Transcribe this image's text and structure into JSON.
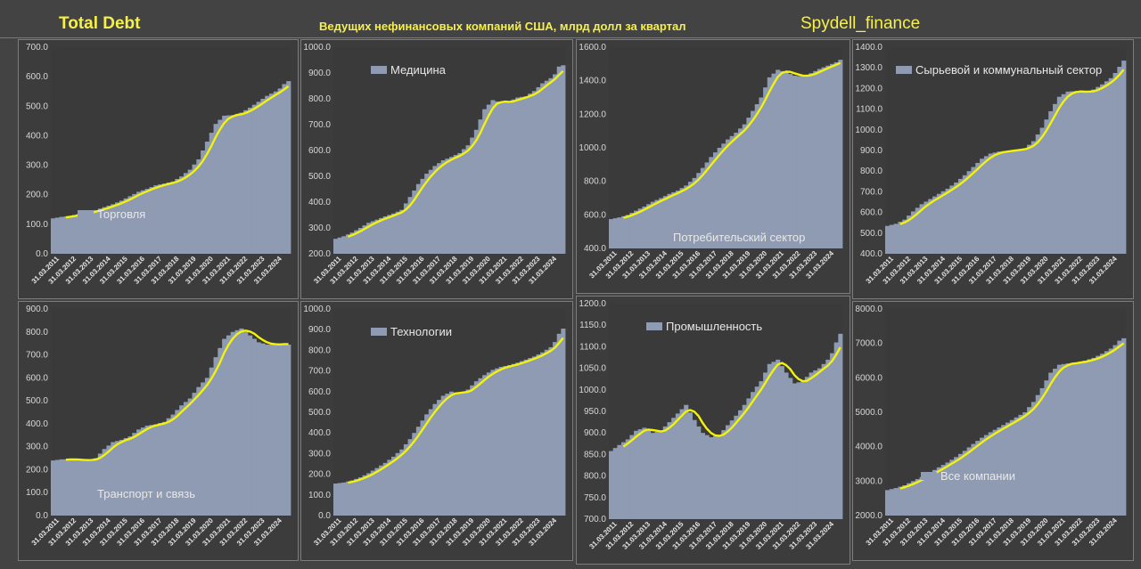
{
  "header": {
    "title": "Total Debt",
    "subtitle": "Ведущих нефинансовых компаний США, млрд долл за квартал",
    "source": "Spydell_finance"
  },
  "colors": {
    "bar": "#8e9bb3",
    "trend": "#f2f20a",
    "accent": "#f5f04a",
    "panel_bg": "#3c3c3c"
  },
  "x_ticks": [
    "31.03.2011",
    "31.03.2012",
    "31.03.2013",
    "31.03.2014",
    "31.03.2015",
    "31.03.2016",
    "31.03.2017",
    "31.03.2018",
    "31.03.2019",
    "31.03.2020",
    "31.03.2021",
    "31.03.2022",
    "31.03.2023",
    "31.03.2024"
  ],
  "chart_data": [
    {
      "type": "bar",
      "legend": "Торговля",
      "legend_position": "bottom-left",
      "ylim": [
        0,
        700
      ],
      "yticks": [
        "0.0",
        "100.0",
        "200.0",
        "300.0",
        "400.0",
        "500.0",
        "600.0",
        "700.0"
      ],
      "anchors": [
        [
          2011.0,
          120
        ],
        [
          2011.5,
          125
        ],
        [
          2012.0,
          128
        ],
        [
          2012.5,
          135
        ],
        [
          2013.0,
          140
        ],
        [
          2013.5,
          148
        ],
        [
          2014.0,
          158
        ],
        [
          2014.5,
          168
        ],
        [
          2015.0,
          180
        ],
        [
          2015.5,
          195
        ],
        [
          2016.0,
          210
        ],
        [
          2016.5,
          220
        ],
        [
          2017.0,
          232
        ],
        [
          2017.5,
          238
        ],
        [
          2018.0,
          245
        ],
        [
          2018.5,
          262
        ],
        [
          2019.0,
          285
        ],
        [
          2019.5,
          320
        ],
        [
          2020.0,
          380
        ],
        [
          2020.5,
          440
        ],
        [
          2021.0,
          468
        ],
        [
          2021.5,
          470
        ],
        [
          2022.0,
          478
        ],
        [
          2022.5,
          495
        ],
        [
          2023.0,
          515
        ],
        [
          2023.5,
          535
        ],
        [
          2024.0,
          550
        ],
        [
          2024.25,
          560
        ],
        [
          2024.5,
          575
        ],
        [
          2024.75,
          585
        ]
      ]
    },
    {
      "type": "bar",
      "legend": "Медицина",
      "legend_position": "top-left",
      "ylim": [
        200,
        1000
      ],
      "yticks": [
        "200.0",
        "300.0",
        "400.0",
        "500.0",
        "600.0",
        "700.0",
        "800.0",
        "900.0",
        "1000.0"
      ],
      "anchors": [
        [
          2011.0,
          258
        ],
        [
          2011.5,
          268
        ],
        [
          2012.0,
          282
        ],
        [
          2012.5,
          300
        ],
        [
          2013.0,
          320
        ],
        [
          2013.5,
          332
        ],
        [
          2014.0,
          345
        ],
        [
          2014.5,
          356
        ],
        [
          2015.0,
          370
        ],
        [
          2015.5,
          420
        ],
        [
          2016.0,
          470
        ],
        [
          2016.5,
          510
        ],
        [
          2017.0,
          540
        ],
        [
          2017.5,
          562
        ],
        [
          2018.0,
          575
        ],
        [
          2018.5,
          590
        ],
        [
          2019.0,
          620
        ],
        [
          2019.5,
          680
        ],
        [
          2020.0,
          760
        ],
        [
          2020.5,
          795
        ],
        [
          2021.0,
          785
        ],
        [
          2021.5,
          790
        ],
        [
          2022.0,
          805
        ],
        [
          2022.5,
          810
        ],
        [
          2023.0,
          830
        ],
        [
          2023.5,
          860
        ],
        [
          2024.0,
          880
        ],
        [
          2024.25,
          895
        ],
        [
          2024.5,
          925
        ],
        [
          2024.75,
          930
        ]
      ]
    },
    {
      "type": "bar",
      "legend": "Потребительский сектор",
      "legend_position": "bottom-center",
      "ylim": [
        400,
        1600
      ],
      "yticks": [
        "400.0",
        "600.0",
        "800.0",
        "1000.0",
        "1200.0",
        "1400.0",
        "1600.0"
      ],
      "anchors": [
        [
          2011.0,
          575
        ],
        [
          2011.5,
          585
        ],
        [
          2012.0,
          600
        ],
        [
          2012.5,
          625
        ],
        [
          2013.0,
          650
        ],
        [
          2013.5,
          678
        ],
        [
          2014.0,
          700
        ],
        [
          2014.5,
          725
        ],
        [
          2015.0,
          745
        ],
        [
          2015.5,
          775
        ],
        [
          2016.0,
          820
        ],
        [
          2016.5,
          880
        ],
        [
          2017.0,
          945
        ],
        [
          2017.5,
          1000
        ],
        [
          2018.0,
          1050
        ],
        [
          2018.5,
          1090
        ],
        [
          2019.0,
          1140
        ],
        [
          2019.5,
          1220
        ],
        [
          2020.0,
          1300
        ],
        [
          2020.5,
          1420
        ],
        [
          2021.0,
          1465
        ],
        [
          2021.5,
          1450
        ],
        [
          2022.0,
          1430
        ],
        [
          2022.5,
          1425
        ],
        [
          2023.0,
          1445
        ],
        [
          2023.5,
          1470
        ],
        [
          2024.0,
          1490
        ],
        [
          2024.25,
          1500
        ],
        [
          2024.5,
          1510
        ],
        [
          2024.75,
          1525
        ]
      ]
    },
    {
      "type": "bar",
      "legend": "Сырьевой и коммунальный сектор",
      "legend_position": "top-left",
      "ylim": [
        400,
        1400
      ],
      "yticks": [
        "400.0",
        "500.0",
        "600.0",
        "700.0",
        "800.0",
        "900.0",
        "1000.0",
        "1100.0",
        "1200.0",
        "1300.0",
        "1400.0"
      ],
      "anchors": [
        [
          2011.0,
          535
        ],
        [
          2011.5,
          545
        ],
        [
          2012.0,
          565
        ],
        [
          2012.5,
          605
        ],
        [
          2013.0,
          640
        ],
        [
          2013.5,
          665
        ],
        [
          2014.0,
          690
        ],
        [
          2014.5,
          715
        ],
        [
          2015.0,
          745
        ],
        [
          2015.5,
          780
        ],
        [
          2016.0,
          820
        ],
        [
          2016.5,
          860
        ],
        [
          2017.0,
          885
        ],
        [
          2017.5,
          895
        ],
        [
          2018.0,
          898
        ],
        [
          2018.5,
          905
        ],
        [
          2019.0,
          910
        ],
        [
          2019.5,
          945
        ],
        [
          2020.0,
          1010
        ],
        [
          2020.5,
          1090
        ],
        [
          2021.0,
          1160
        ],
        [
          2021.5,
          1185
        ],
        [
          2022.0,
          1188
        ],
        [
          2022.5,
          1180
        ],
        [
          2023.0,
          1195
        ],
        [
          2023.5,
          1220
        ],
        [
          2024.0,
          1250
        ],
        [
          2024.25,
          1275
        ],
        [
          2024.5,
          1305
        ],
        [
          2024.75,
          1335
        ]
      ]
    },
    {
      "type": "bar",
      "legend": "Транспорт и связь",
      "legend_position": "bottom-left",
      "ylim": [
        0,
        900
      ],
      "yticks": [
        "0.0",
        "100.0",
        "200.0",
        "300.0",
        "400.0",
        "500.0",
        "600.0",
        "700.0",
        "800.0",
        "900.0"
      ],
      "anchors": [
        [
          2011.0,
          240
        ],
        [
          2011.5,
          245
        ],
        [
          2012.0,
          245
        ],
        [
          2012.5,
          242
        ],
        [
          2013.0,
          240
        ],
        [
          2013.5,
          250
        ],
        [
          2014.0,
          290
        ],
        [
          2014.5,
          320
        ],
        [
          2015.0,
          330
        ],
        [
          2015.5,
          345
        ],
        [
          2016.0,
          375
        ],
        [
          2016.5,
          392
        ],
        [
          2017.0,
          398
        ],
        [
          2017.5,
          408
        ],
        [
          2018.0,
          440
        ],
        [
          2018.5,
          480
        ],
        [
          2019.0,
          510
        ],
        [
          2019.5,
          560
        ],
        [
          2020.0,
          600
        ],
        [
          2020.5,
          690
        ],
        [
          2021.0,
          770
        ],
        [
          2021.5,
          800
        ],
        [
          2022.0,
          815
        ],
        [
          2022.5,
          785
        ],
        [
          2023.0,
          755
        ],
        [
          2023.5,
          745
        ],
        [
          2024.0,
          745
        ],
        [
          2024.25,
          748
        ],
        [
          2024.5,
          750
        ],
        [
          2024.75,
          745
        ]
      ]
    },
    {
      "type": "bar",
      "legend": "Технологии",
      "legend_position": "top-left",
      "ylim": [
        0,
        1000
      ],
      "yticks": [
        "0.0",
        "100.0",
        "200.0",
        "300.0",
        "400.0",
        "500.0",
        "600.0",
        "700.0",
        "800.0",
        "900.0",
        "1000.0"
      ],
      "anchors": [
        [
          2011.0,
          155
        ],
        [
          2011.5,
          160
        ],
        [
          2012.0,
          170
        ],
        [
          2012.5,
          185
        ],
        [
          2013.0,
          205
        ],
        [
          2013.5,
          230
        ],
        [
          2014.0,
          255
        ],
        [
          2014.5,
          285
        ],
        [
          2015.0,
          320
        ],
        [
          2015.5,
          370
        ],
        [
          2016.0,
          430
        ],
        [
          2016.5,
          490
        ],
        [
          2017.0,
          540
        ],
        [
          2017.5,
          580
        ],
        [
          2018.0,
          600
        ],
        [
          2018.5,
          590
        ],
        [
          2019.0,
          610
        ],
        [
          2019.5,
          650
        ],
        [
          2020.0,
          680
        ],
        [
          2020.5,
          705
        ],
        [
          2021.0,
          720
        ],
        [
          2021.5,
          728
        ],
        [
          2022.0,
          740
        ],
        [
          2022.5,
          755
        ],
        [
          2023.0,
          770
        ],
        [
          2023.5,
          790
        ],
        [
          2024.0,
          815
        ],
        [
          2024.25,
          840
        ],
        [
          2024.5,
          880
        ],
        [
          2024.75,
          905
        ]
      ]
    },
    {
      "type": "bar",
      "legend": "Промышленность",
      "legend_position": "top-left",
      "ylim": [
        700,
        1200
      ],
      "yticks": [
        "700.0",
        "750.0",
        "800.0",
        "850.0",
        "900.0",
        "950.0",
        "1000.0",
        "1050.0",
        "1100.0",
        "1150.0",
        "1200.0"
      ],
      "anchors": [
        [
          2011.0,
          858
        ],
        [
          2011.5,
          872
        ],
        [
          2012.0,
          885
        ],
        [
          2012.5,
          905
        ],
        [
          2013.0,
          912
        ],
        [
          2013.5,
          900
        ],
        [
          2014.0,
          905
        ],
        [
          2014.5,
          925
        ],
        [
          2015.0,
          945
        ],
        [
          2015.5,
          965
        ],
        [
          2016.0,
          930
        ],
        [
          2016.5,
          900
        ],
        [
          2017.0,
          890
        ],
        [
          2017.5,
          895
        ],
        [
          2018.0,
          918
        ],
        [
          2018.5,
          940
        ],
        [
          2019.0,
          965
        ],
        [
          2019.5,
          995
        ],
        [
          2020.0,
          1020
        ],
        [
          2020.5,
          1060
        ],
        [
          2021.0,
          1070
        ],
        [
          2021.5,
          1040
        ],
        [
          2022.0,
          1015
        ],
        [
          2022.5,
          1020
        ],
        [
          2023.0,
          1040
        ],
        [
          2023.5,
          1050
        ],
        [
          2024.0,
          1070
        ],
        [
          2024.25,
          1085
        ],
        [
          2024.5,
          1110
        ],
        [
          2024.75,
          1130
        ]
      ]
    },
    {
      "type": "bar",
      "legend": "Все компании",
      "legend_position": "bottom-left",
      "ylim": [
        2000,
        8000
      ],
      "yticks": [
        "2000.0",
        "3000.0",
        "4000.0",
        "5000.0",
        "6000.0",
        "7000.0",
        "8000.0"
      ],
      "anchors": [
        [
          2011.0,
          2740
        ],
        [
          2011.5,
          2800
        ],
        [
          2012.0,
          2880
        ],
        [
          2012.5,
          3000
        ],
        [
          2013.0,
          3120
        ],
        [
          2013.5,
          3250
        ],
        [
          2014.0,
          3400
        ],
        [
          2014.5,
          3540
        ],
        [
          2015.0,
          3700
        ],
        [
          2015.5,
          3880
        ],
        [
          2016.0,
          4080
        ],
        [
          2016.5,
          4260
        ],
        [
          2017.0,
          4420
        ],
        [
          2017.5,
          4560
        ],
        [
          2018.0,
          4700
        ],
        [
          2018.5,
          4850
        ],
        [
          2019.0,
          5000
        ],
        [
          2019.5,
          5300
        ],
        [
          2020.0,
          5700
        ],
        [
          2020.5,
          6150
        ],
        [
          2021.0,
          6380
        ],
        [
          2021.5,
          6420
        ],
        [
          2022.0,
          6450
        ],
        [
          2022.5,
          6500
        ],
        [
          2023.0,
          6580
        ],
        [
          2023.5,
          6700
        ],
        [
          2024.0,
          6850
        ],
        [
          2024.25,
          6950
        ],
        [
          2024.5,
          7080
        ],
        [
          2024.75,
          7150
        ]
      ]
    }
  ]
}
